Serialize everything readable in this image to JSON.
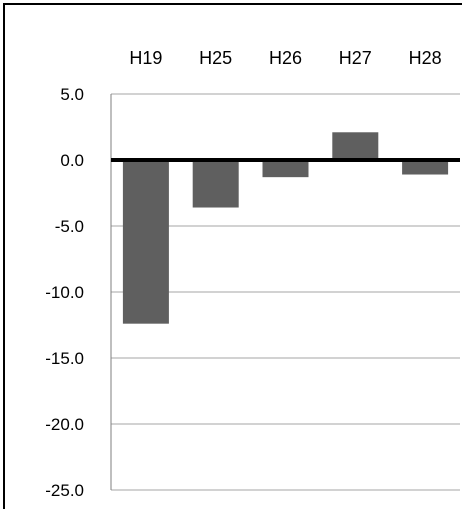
{
  "chart_data": {
    "type": "bar",
    "title": "",
    "xlabel": "",
    "ylabel": "",
    "categories": [
      "H19",
      "H25",
      "H26",
      "H27",
      "H28"
    ],
    "values": [
      -12.4,
      -3.6,
      -1.3,
      2.1,
      -1.1
    ],
    "ylim": [
      -25.0,
      5.0
    ],
    "y_ticks": [
      "5.0",
      "0.0",
      "-5.0",
      "-10.0",
      "-15.0",
      "-20.0",
      "-25.0"
    ],
    "y_tick_values": [
      5,
      0,
      -5,
      -10,
      -15,
      -20,
      -25
    ],
    "category_labels_position": "top",
    "grid": true,
    "legend": "none",
    "colors": {
      "bar": "#5f5f5f",
      "zero_line": "#000000",
      "grid": "#a6a6a6"
    }
  }
}
